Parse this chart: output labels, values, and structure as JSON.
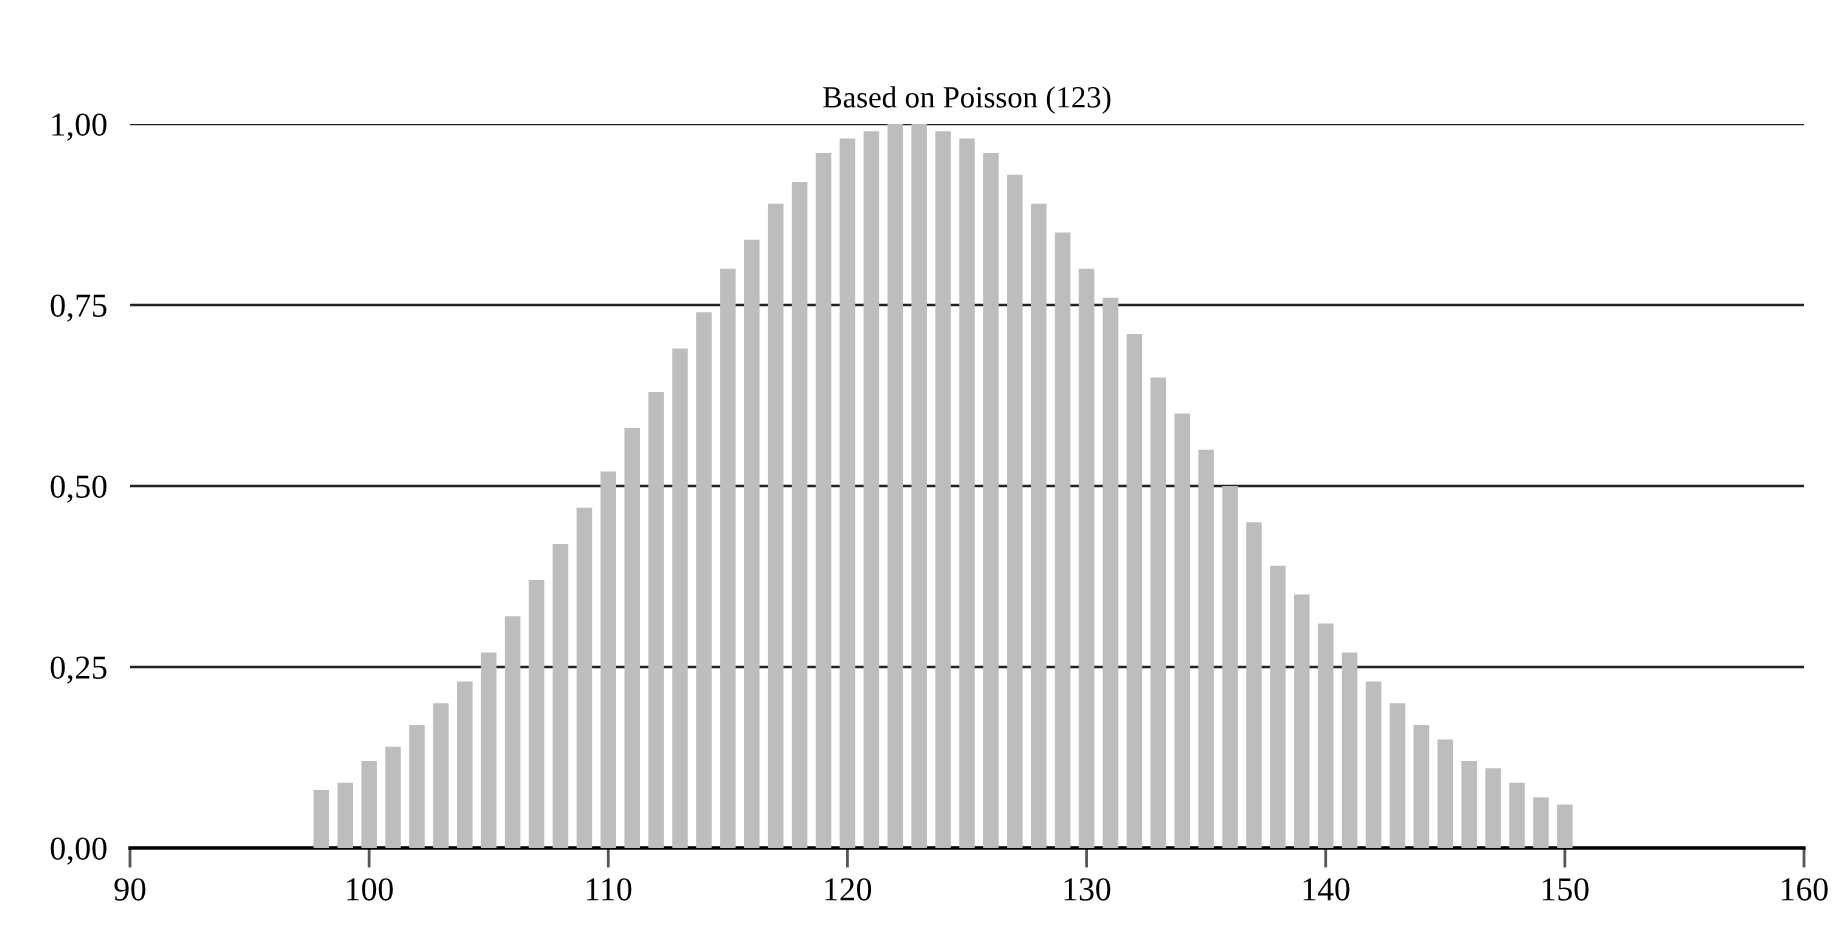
{
  "chart_data": {
    "type": "bar",
    "title": "Based on Poisson (123)",
    "x": [
      98,
      99,
      100,
      101,
      102,
      103,
      104,
      105,
      106,
      107,
      108,
      109,
      110,
      111,
      112,
      113,
      114,
      115,
      116,
      117,
      118,
      119,
      120,
      121,
      122,
      123,
      124,
      125,
      126,
      127,
      128,
      129,
      130,
      131,
      132,
      133,
      134,
      135,
      136,
      137,
      138,
      139,
      140,
      141,
      142,
      143,
      144,
      145,
      146,
      147,
      148,
      149,
      150
    ],
    "values": [
      0.08,
      0.09,
      0.12,
      0.14,
      0.17,
      0.2,
      0.23,
      0.27,
      0.32,
      0.37,
      0.42,
      0.47,
      0.52,
      0.58,
      0.63,
      0.69,
      0.74,
      0.8,
      0.84,
      0.89,
      0.92,
      0.96,
      0.98,
      0.99,
      1.0,
      1.0,
      0.99,
      0.98,
      0.96,
      0.93,
      0.89,
      0.85,
      0.8,
      0.76,
      0.71,
      0.65,
      0.6,
      0.55,
      0.5,
      0.45,
      0.39,
      0.35,
      0.31,
      0.27,
      0.23,
      0.2,
      0.17,
      0.15,
      0.12,
      0.11,
      0.09,
      0.07,
      0.06
    ],
    "color": "#bdbdbf",
    "xlim": [
      90,
      160
    ],
    "xticks": [
      90,
      100,
      110,
      120,
      130,
      140,
      150,
      160
    ],
    "ylim": [
      0,
      1
    ],
    "yticks": [
      {
        "value": 0,
        "label": "0,00"
      },
      {
        "value": 0.25,
        "label": "0,25"
      },
      {
        "value": 0.5,
        "label": "0,50"
      },
      {
        "value": 0.75,
        "label": "0,75"
      },
      {
        "value": 1,
        "label": "1,00"
      }
    ],
    "grid": "y"
  }
}
